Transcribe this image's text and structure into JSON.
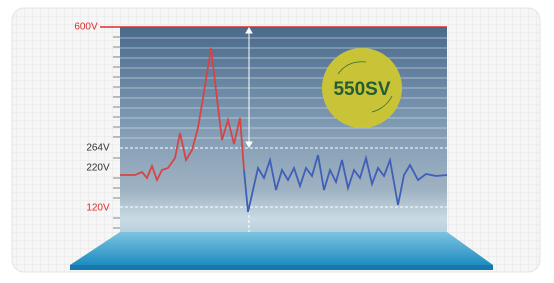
{
  "labels": {
    "max": "600V",
    "upper": "264V",
    "nominal": "220V",
    "lower": "120V"
  },
  "badge": "550SV"
}
